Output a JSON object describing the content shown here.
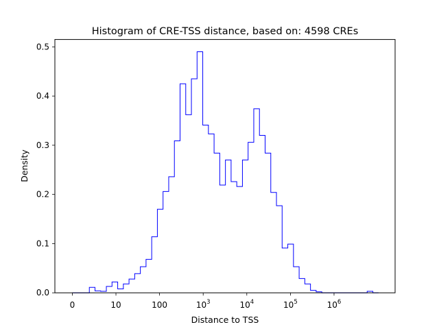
{
  "chart_data": {
    "type": "histogram",
    "title": "Histogram of CRE-TSS distance, based on: 4598 CREs",
    "xlabel": "Distance to TSS",
    "ylabel": "Density",
    "x_scale": "symlog",
    "xlim": [
      -0.4,
      7.4
    ],
    "ylim": [
      0.0,
      0.515
    ],
    "grid": false,
    "line_color": "#0000ff",
    "x_ticks": [
      {
        "pos": 0,
        "base": "0",
        "exp": ""
      },
      {
        "pos": 1,
        "base": "10",
        "exp": ""
      },
      {
        "pos": 2,
        "base": "100",
        "exp": ""
      },
      {
        "pos": 3,
        "base": "10",
        "exp": "3"
      },
      {
        "pos": 4,
        "base": "10",
        "exp": "4"
      },
      {
        "pos": 5,
        "base": "10",
        "exp": "5"
      },
      {
        "pos": 6,
        "base": "10",
        "exp": "6"
      }
    ],
    "y_ticks": [
      "0.0",
      "0.1",
      "0.2",
      "0.3",
      "0.4",
      "0.5"
    ],
    "y_tick_values": [
      0.0,
      0.1,
      0.2,
      0.3,
      0.4,
      0.5
    ],
    "bin_edges": [
      0.0,
      0.13,
      0.26,
      0.39,
      0.52,
      0.65,
      0.78,
      0.91,
      1.04,
      1.17,
      1.3,
      1.43,
      1.56,
      1.69,
      1.82,
      1.95,
      2.08,
      2.21,
      2.34,
      2.47,
      2.6,
      2.73,
      2.86,
      2.99,
      3.12,
      3.25,
      3.38,
      3.51,
      3.64,
      3.77,
      3.9,
      4.03,
      4.16,
      4.29,
      4.42,
      4.55,
      4.68,
      4.81,
      4.94,
      5.07,
      5.2,
      5.33,
      5.46,
      5.59,
      5.72,
      5.85,
      5.98,
      6.11,
      6.24,
      6.37,
      6.5,
      6.63,
      6.76,
      6.89,
      7.02
    ],
    "densities": [
      0.0,
      0.0,
      0.0,
      0.011,
      0.004,
      0.003,
      0.013,
      0.022,
      0.008,
      0.018,
      0.028,
      0.039,
      0.053,
      0.068,
      0.114,
      0.17,
      0.206,
      0.236,
      0.309,
      0.425,
      0.362,
      0.435,
      0.49,
      0.341,
      0.323,
      0.284,
      0.219,
      0.27,
      0.226,
      0.216,
      0.27,
      0.306,
      0.374,
      0.32,
      0.284,
      0.204,
      0.177,
      0.091,
      0.099,
      0.053,
      0.029,
      0.018,
      0.005,
      0.002,
      0.0,
      0.0,
      0.0,
      0.0,
      0.0,
      0.0,
      0.0,
      0.0,
      0.003,
      0.0
    ]
  }
}
